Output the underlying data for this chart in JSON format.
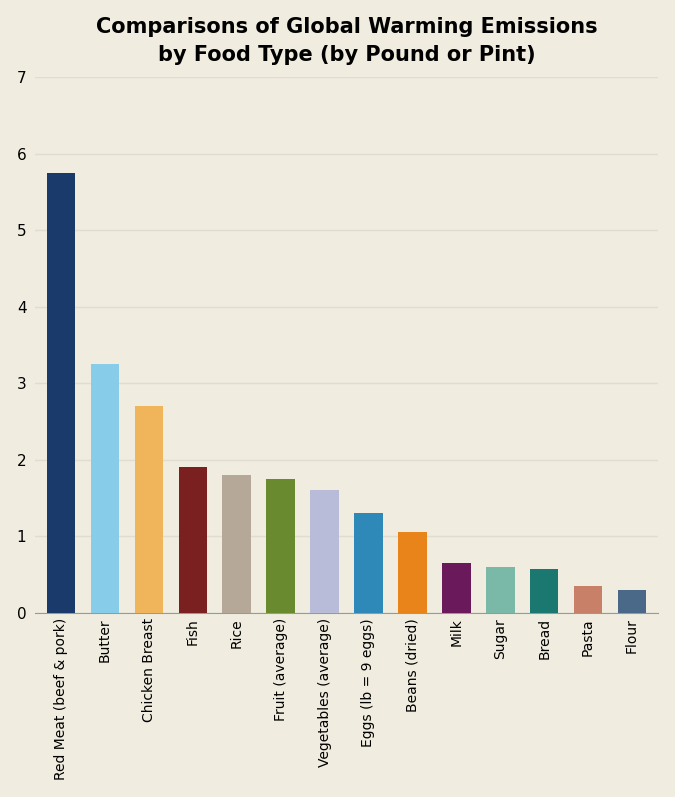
{
  "categories": [
    "Red Meat (beef & pork)",
    "Butter",
    "Chicken Breast",
    "Fish",
    "Rice",
    "Fruit (average)",
    "Vegetables (average)",
    "Eggs (lb = 9 eggs)",
    "Beans (dried)",
    "Milk",
    "Sugar",
    "Bread",
    "Pasta",
    "Flour"
  ],
  "values": [
    5.75,
    3.25,
    2.7,
    1.9,
    1.8,
    1.75,
    1.6,
    1.3,
    1.05,
    0.65,
    0.6,
    0.57,
    0.35,
    0.3
  ],
  "colors": [
    "#1a3a6b",
    "#87cce8",
    "#f0b55a",
    "#7a2020",
    "#b5a898",
    "#6a8a30",
    "#b8bcd8",
    "#2e88b8",
    "#e8841a",
    "#6a1a5a",
    "#7ab8a8",
    "#1a7870",
    "#c88068",
    "#4a6888"
  ],
  "title": "Comparisons of Global Warming Emissions\nby Food Type (by Pound or Pint)",
  "ylim": [
    0,
    7
  ],
  "yticks": [
    0,
    1,
    2,
    3,
    4,
    5,
    6,
    7
  ],
  "background_color": "#f0ede0",
  "title_fontsize": 15,
  "grid_color": "#e0ddd0"
}
